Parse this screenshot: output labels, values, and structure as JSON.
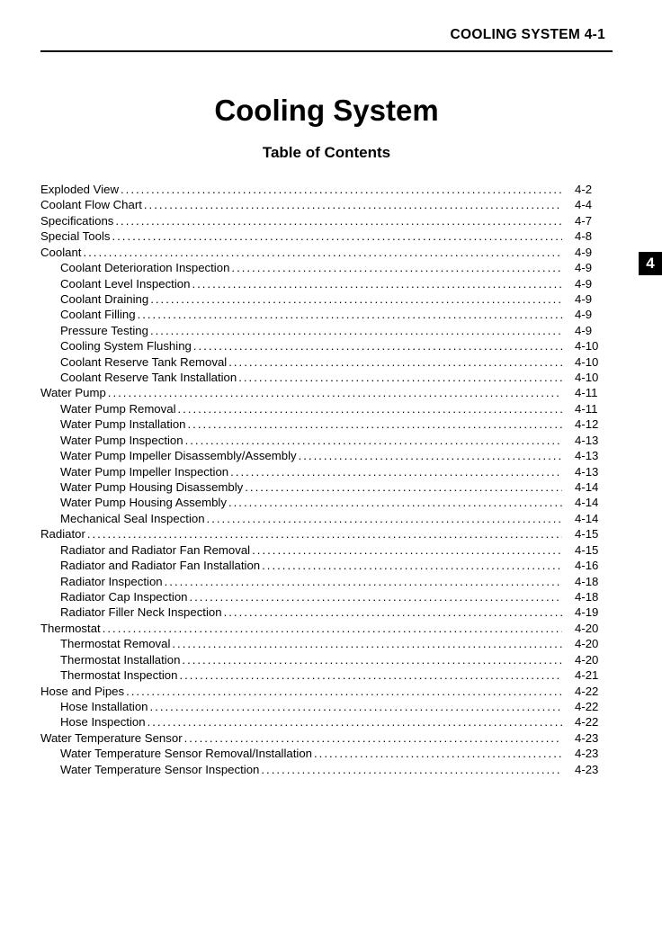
{
  "header": "COOLING SYSTEM 4-1",
  "title": "Cooling System",
  "subtitle": "Table of Contents",
  "section_tab": "4",
  "toc": [
    {
      "title": "Exploded View",
      "page": "4-2",
      "indent": 0
    },
    {
      "title": "Coolant Flow Chart",
      "page": "4-4",
      "indent": 0
    },
    {
      "title": "Specifications",
      "page": "4-7",
      "indent": 0
    },
    {
      "title": "Special Tools ",
      "page": "4-8",
      "indent": 0
    },
    {
      "title": "Coolant",
      "page": "4-9",
      "indent": 0
    },
    {
      "title": "Coolant Deterioration Inspection",
      "page": "4-9",
      "indent": 1
    },
    {
      "title": "Coolant Level Inspection",
      "page": "4-9",
      "indent": 1
    },
    {
      "title": "Coolant Draining ",
      "page": "4-9",
      "indent": 1
    },
    {
      "title": "Coolant Filling ",
      "page": "4-9",
      "indent": 1
    },
    {
      "title": "Pressure Testing ",
      "page": "4-9",
      "indent": 1
    },
    {
      "title": "Cooling System Flushing ",
      "page": "4-10",
      "indent": 1
    },
    {
      "title": "Coolant Reserve Tank Removal ",
      "page": "4-10",
      "indent": 1
    },
    {
      "title": "Coolant Reserve Tank Installation ",
      "page": "4-10",
      "indent": 1
    },
    {
      "title": "Water Pump",
      "page": "4-11",
      "indent": 0
    },
    {
      "title": "Water Pump Removal",
      "page": "4-11",
      "indent": 1
    },
    {
      "title": "Water Pump Installation",
      "page": "4-12",
      "indent": 1
    },
    {
      "title": "Water Pump Inspection",
      "page": "4-13",
      "indent": 1
    },
    {
      "title": "Water Pump Impeller Disassembly/Assembly ",
      "page": "4-13",
      "indent": 1
    },
    {
      "title": "Water Pump Impeller Inspection ",
      "page": "4-13",
      "indent": 1
    },
    {
      "title": "Water Pump Housing Disassembly ",
      "page": "4-14",
      "indent": 1
    },
    {
      "title": "Water Pump Housing Assembly ",
      "page": "4-14",
      "indent": 1
    },
    {
      "title": "Mechanical Seal Inspection ",
      "page": "4-14",
      "indent": 1
    },
    {
      "title": "Radiator",
      "page": "4-15",
      "indent": 0
    },
    {
      "title": "Radiator and Radiator Fan Removal ",
      "page": "4-15",
      "indent": 1
    },
    {
      "title": "Radiator and Radiator Fan Installation ",
      "page": "4-16",
      "indent": 1
    },
    {
      "title": "Radiator Inspection ",
      "page": "4-18",
      "indent": 1
    },
    {
      "title": "Radiator Cap Inspection ",
      "page": "4-18",
      "indent": 1
    },
    {
      "title": "Radiator Filler Neck Inspection ",
      "page": "4-19",
      "indent": 1
    },
    {
      "title": "Thermostat ",
      "page": "4-20",
      "indent": 0
    },
    {
      "title": "Thermostat Removal",
      "page": "4-20",
      "indent": 1
    },
    {
      "title": "Thermostat Installation",
      "page": "4-20",
      "indent": 1
    },
    {
      "title": "Thermostat Inspection ",
      "page": "4-21",
      "indent": 1
    },
    {
      "title": "Hose and Pipes ",
      "page": "4-22",
      "indent": 0
    },
    {
      "title": "Hose Installation ",
      "page": "4-22",
      "indent": 1
    },
    {
      "title": "Hose Inspection ",
      "page": "4-22",
      "indent": 1
    },
    {
      "title": "Water Temperature Sensor ",
      "page": "4-23",
      "indent": 0
    },
    {
      "title": "Water Temperature Sensor Removal/Installation ",
      "page": "4-23",
      "indent": 1
    },
    {
      "title": "Water Temperature Sensor Inspection ",
      "page": "4-23",
      "indent": 1
    }
  ]
}
